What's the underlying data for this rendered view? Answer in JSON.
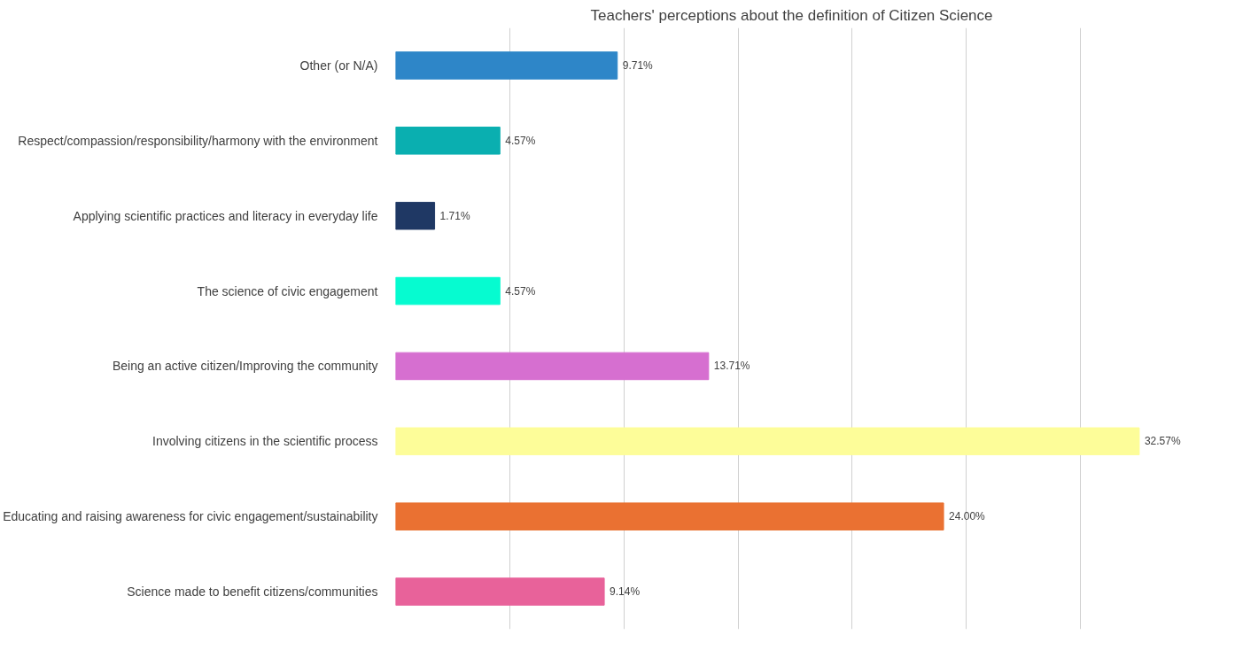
{
  "chart_data": {
    "type": "bar",
    "orientation": "horizontal",
    "title": "Teachers' perceptions about the definition of Citizen Science",
    "categories": [
      "Other (or N/A)",
      "Respect/compassion/responsibility/harmony with the environment",
      "Applying scientific practices and literacy in everyday life",
      "The science of civic engagement",
      "Being an active citizen/Improving the community",
      "Involving citizens in the scientific process",
      "Educating and raising awareness for civic engagement/sustainability",
      "Science made to benefit citizens/communities"
    ],
    "values": [
      9.71,
      4.57,
      1.71,
      4.57,
      13.71,
      32.57,
      24.0,
      9.14
    ],
    "value_labels": [
      "9.71%",
      "4.57%",
      "1.71%",
      "4.57%",
      "13.71%",
      "32.57%",
      "24.00%",
      "9.14%"
    ],
    "colors": [
      "#2e86c8",
      "#0aafb0",
      "#1f3864",
      "#06fbd0",
      "#d66fd0",
      "#fdfd99",
      "#ea7132",
      "#e8629a"
    ],
    "grid": "x",
    "tick_labels": "y"
  }
}
